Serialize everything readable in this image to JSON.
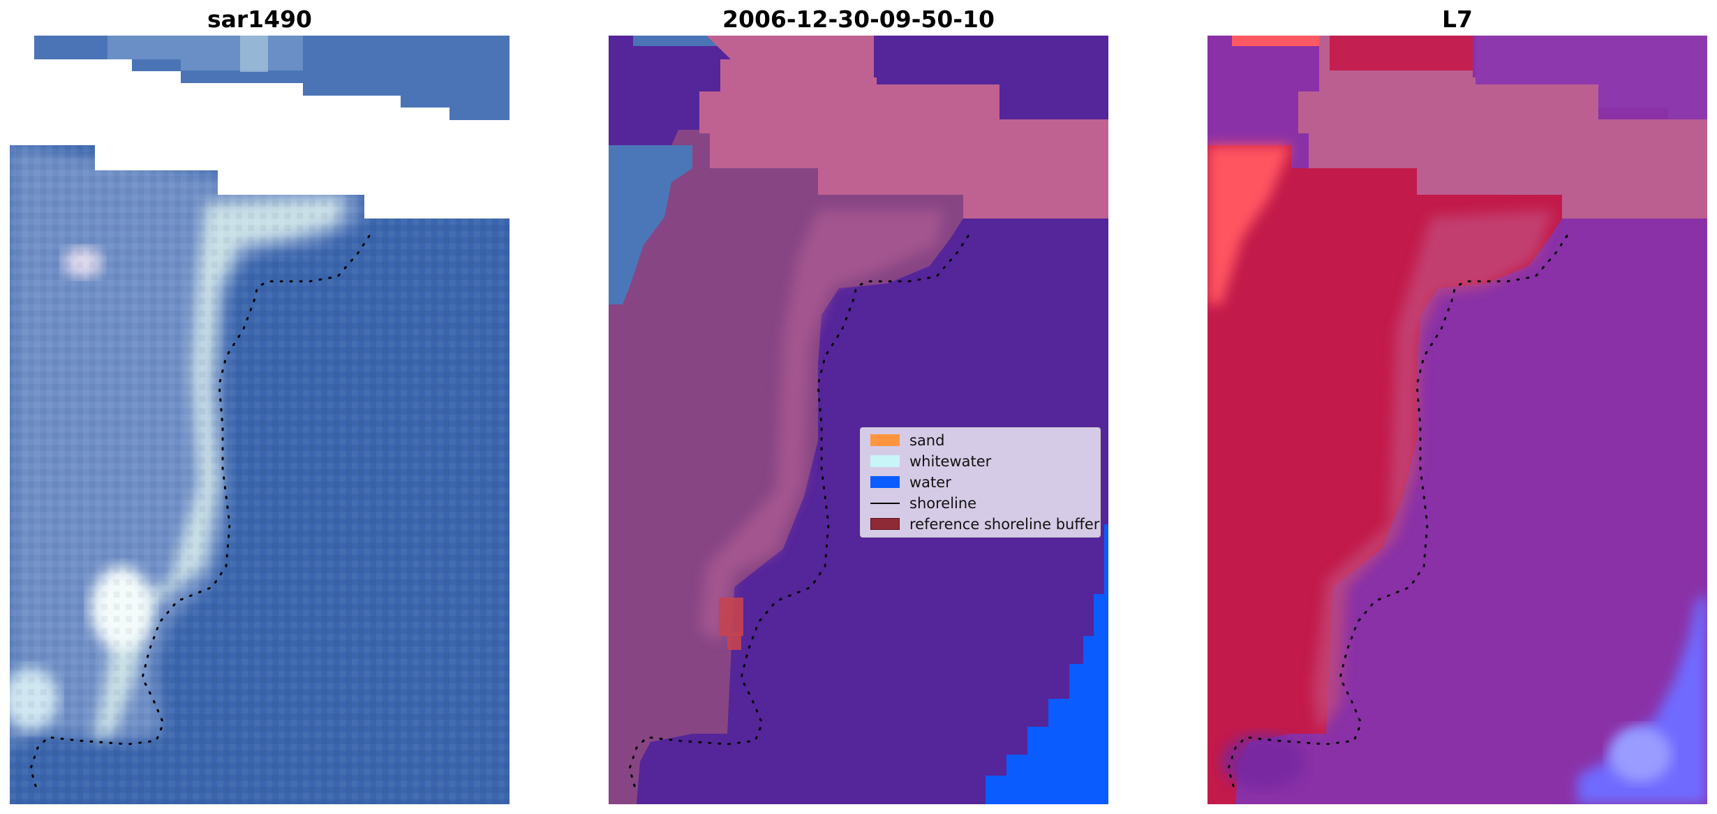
{
  "panels": [
    {
      "id": "rgb",
      "title": "sar1490"
    },
    {
      "id": "classified",
      "title": "2006-12-30-09-50-10"
    },
    {
      "id": "index",
      "title": "L7"
    }
  ],
  "legend": {
    "items": [
      {
        "label": "sand",
        "color": "#ff9540",
        "kind": "patch"
      },
      {
        "label": "whitewater",
        "color": "#c8f5f8",
        "kind": "patch"
      },
      {
        "label": "water",
        "color": "#0a5cff",
        "kind": "patch"
      },
      {
        "label": "shoreline",
        "color": "#000000",
        "kind": "line"
      },
      {
        "label": "reference shoreline buffer",
        "color": "#8e2a36",
        "kind": "patch"
      }
    ]
  },
  "colors": {
    "background": "#ffffff",
    "rgb_water": "#3b66ad",
    "rgb_land": "#6f8fc6",
    "rgb_bright": "#e6f2f0",
    "class_water": "#55259a",
    "class_land": "#874584",
    "class_cloud": "#bf6292",
    "class_deepwater": "#0a5cff",
    "index_land": "#c21a4a",
    "index_water": "#8a31a7",
    "index_cloud": "#bb5f90",
    "index_high": "#ff5560",
    "index_low": "#6f6bff"
  }
}
